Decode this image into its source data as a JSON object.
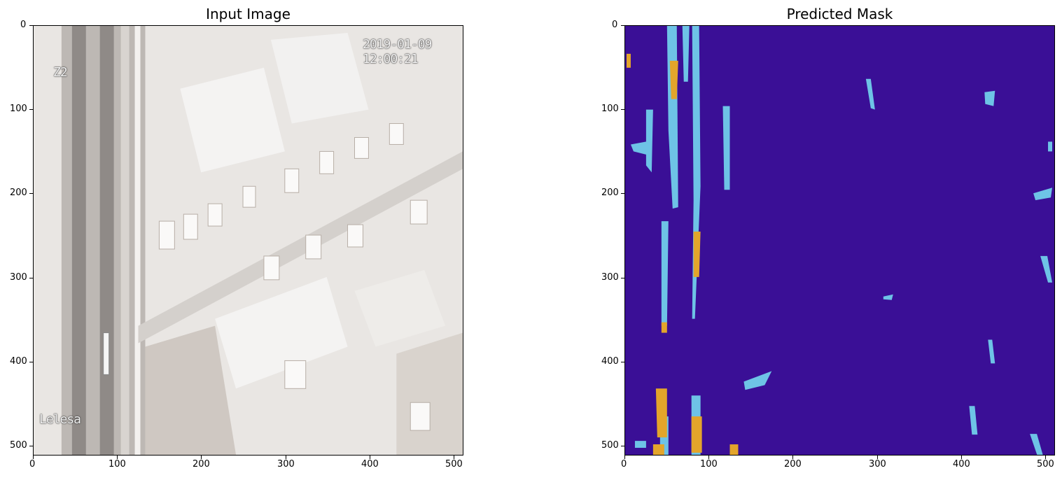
{
  "figure": {
    "panels": [
      {
        "title": "Input Image",
        "x_ticks": [
          "0",
          "100",
          "200",
          "300",
          "400",
          "500"
        ],
        "y_ticks": [
          "0",
          "100",
          "200",
          "300",
          "400",
          "500"
        ],
        "overlay_timestamp": "2019-01-09 12:00:21",
        "overlay_top_left": "Z2",
        "overlay_bottom_left": "Lelesa"
      },
      {
        "title": "Predicted Mask",
        "x_ticks": [
          "0",
          "100",
          "200",
          "300",
          "400",
          "500"
        ],
        "y_ticks": [
          "0",
          "100",
          "200",
          "300",
          "400",
          "500"
        ],
        "colors": {
          "background": "#3a0f96",
          "class_light_blue": "#6ec3e6",
          "class_orange": "#e3a52b"
        }
      }
    ]
  }
}
